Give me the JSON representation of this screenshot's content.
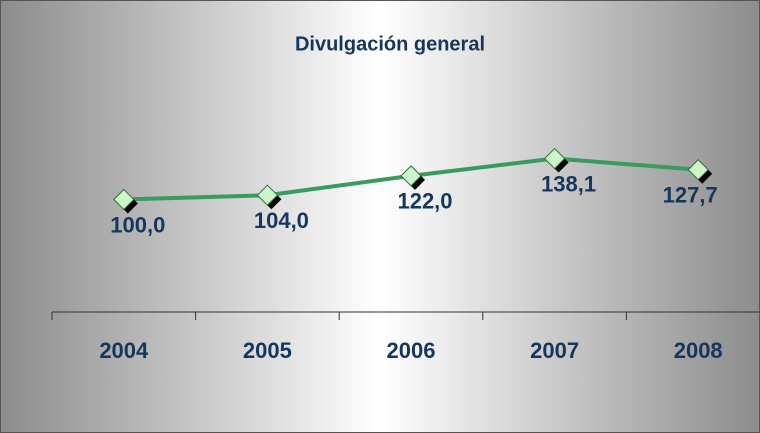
{
  "chart_data": {
    "type": "line",
    "title": "Divulgación general",
    "categories": [
      "2004",
      "2005",
      "2006",
      "2007",
      "2008"
    ],
    "series": [
      {
        "name": null,
        "color": "#3a9a5f",
        "values": [
          100,
          104,
          122,
          138.1,
          127.7
        ],
        "value_labels": [
          "100,0",
          "104,0",
          "122,0",
          "138,1",
          "127,7"
        ]
      }
    ],
    "ylim": [
      0,
      200
    ],
    "marker_color": "#ccf5c8"
  }
}
